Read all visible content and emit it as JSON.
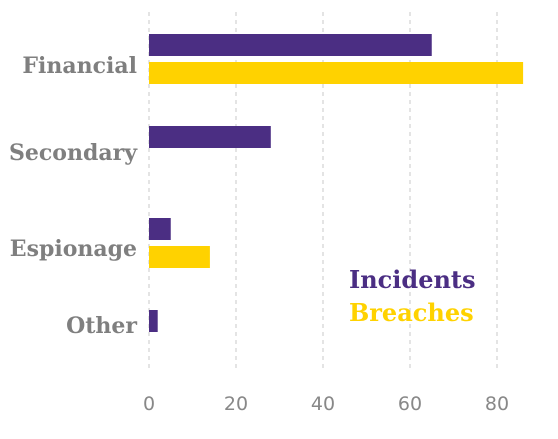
{
  "chart_data": {
    "type": "bar",
    "orientation": "horizontal",
    "categories": [
      "Financial",
      "Secondary",
      "Espionage",
      "Other"
    ],
    "series": [
      {
        "name": "Incidents",
        "values": [
          65,
          28,
          5,
          2
        ],
        "color": "#4b2e83"
      },
      {
        "name": "Breaches",
        "values": [
          86,
          0,
          14,
          0
        ],
        "color": "#ffd200"
      }
    ],
    "xlim": [
      0,
      80
    ],
    "xticks": [
      0,
      20,
      40,
      60,
      80
    ],
    "grid": true,
    "legend_position": "bottom-right"
  }
}
